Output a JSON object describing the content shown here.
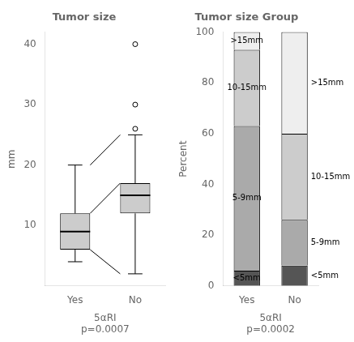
{
  "chart_data": [
    {
      "type": "box",
      "title": "Tumor size",
      "y_label": "mm",
      "x_label": "5αRI\np=0.0007",
      "categories": [
        "Yes",
        "No"
      ],
      "q1": [
        6,
        12
      ],
      "median": [
        9,
        15
      ],
      "q3": [
        12,
        17
      ],
      "whisker_low": [
        4,
        2
      ],
      "whisker_high": [
        20,
        25
      ],
      "outliers": [
        [],
        [
          30,
          26,
          40
        ]
      ],
      "connectors": [
        [
          20,
          25
        ],
        [
          12,
          17
        ],
        [
          6,
          2
        ]
      ],
      "color": "#cccccc",
      "ylim": [
        0,
        42
      ],
      "yticks": [
        10,
        20,
        30,
        40
      ],
      "grid": false
    },
    {
      "type": "bar",
      "title": "Tumor size Group",
      "y_label": "Percent",
      "x_label": "5αRI\np=0.0002",
      "categories": [
        "Yes",
        "No"
      ],
      "stacked": true,
      "series": [
        {
          "name": "<5mm",
          "color": "#555555",
          "values": [
            6,
            8
          ]
        },
        {
          "name": "5-9mm",
          "color": "#aaaaaa",
          "values": [
            57,
            18
          ]
        },
        {
          "name": "10-15mm",
          "color": "#cccccc",
          "values": [
            30,
            34
          ]
        },
        {
          "name": ">15mm",
          "color": "#eeeeee",
          "values": [
            7,
            40
          ]
        }
      ],
      "ylim": [
        0,
        100
      ],
      "yticks": [
        0,
        20,
        40,
        60,
        80,
        100
      ],
      "grid": false
    }
  ]
}
